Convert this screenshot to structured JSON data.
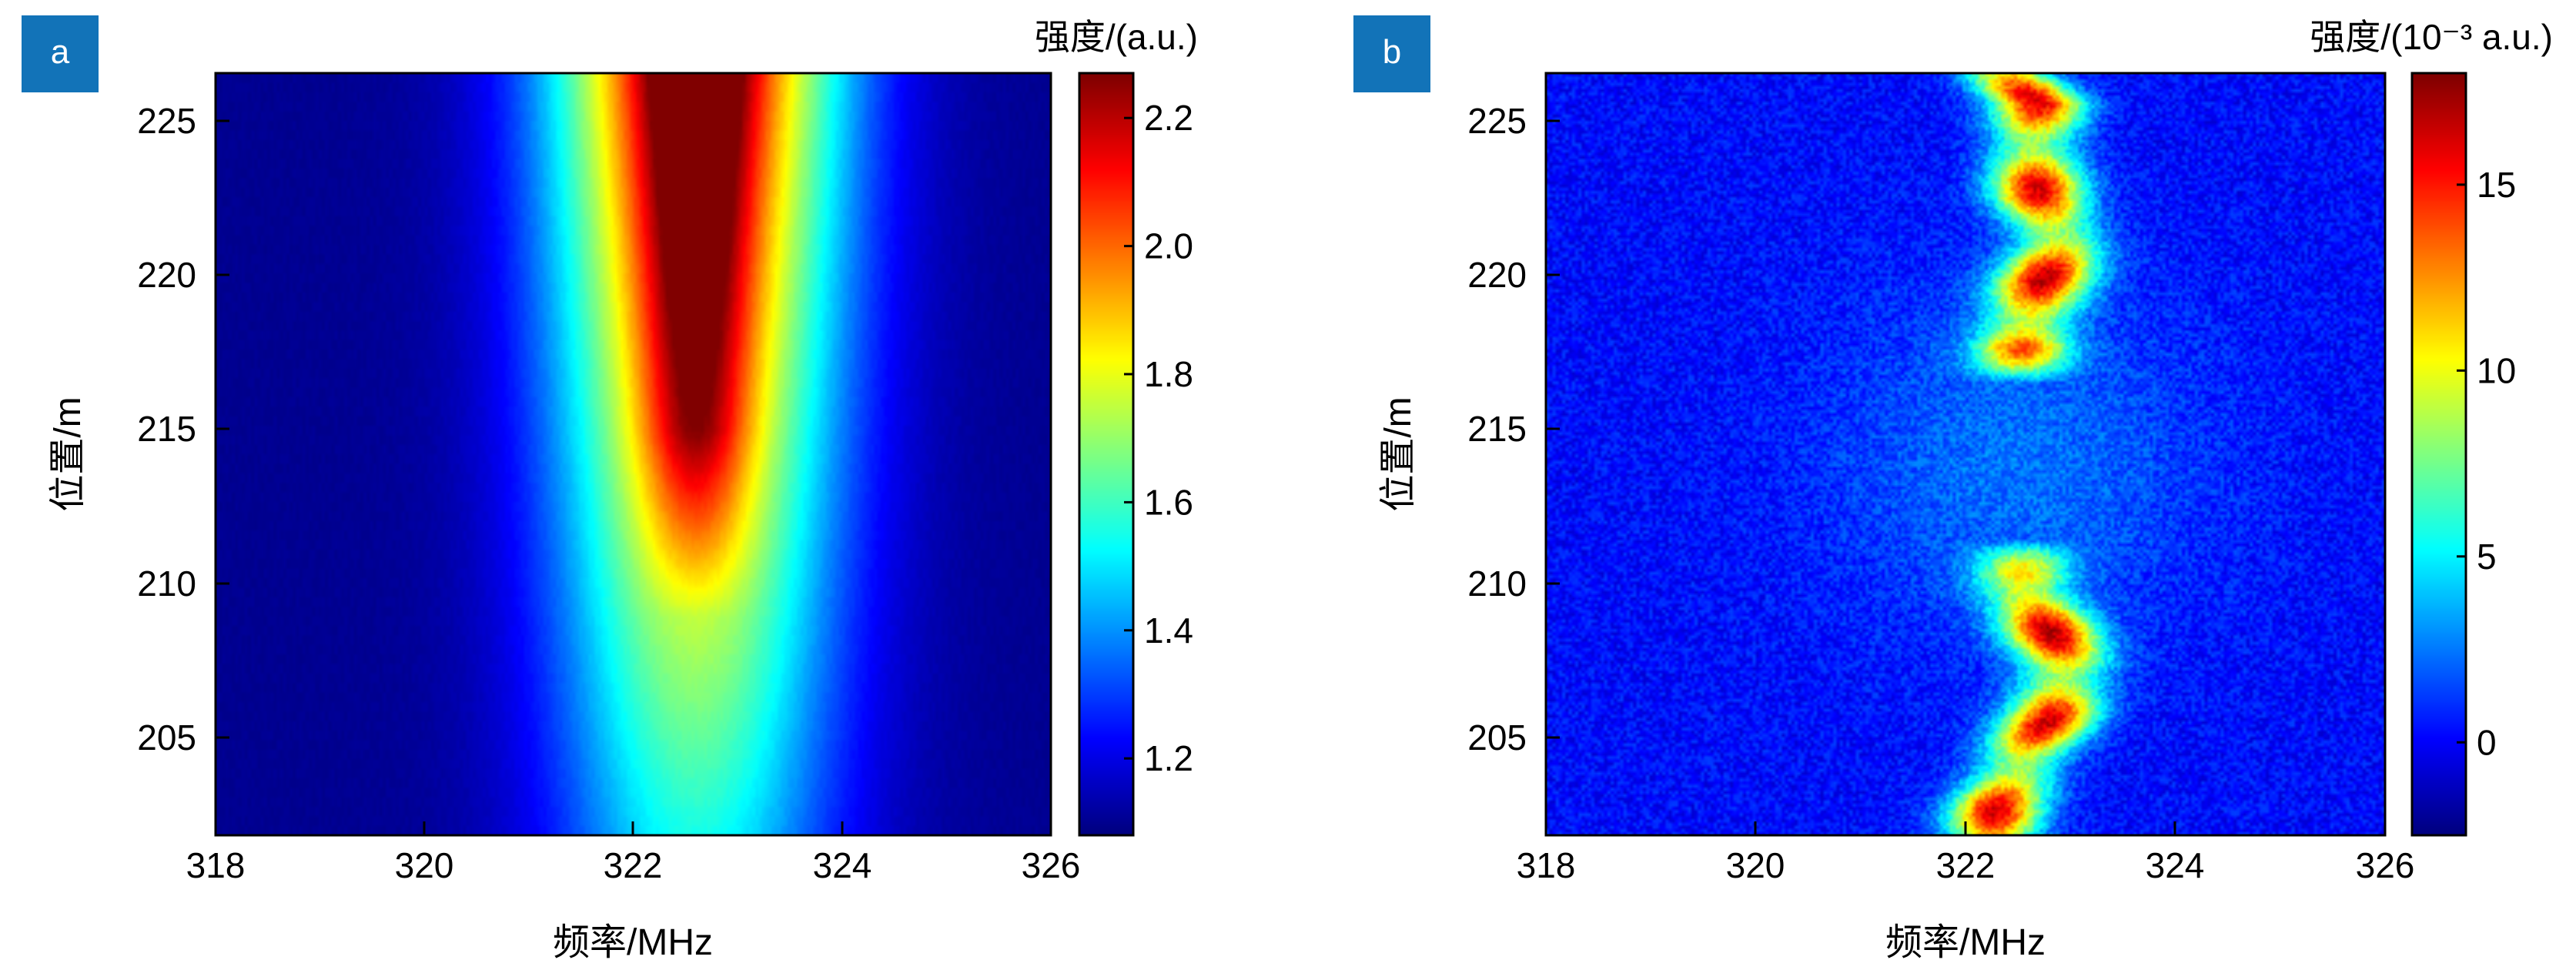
{
  "chart_data": [
    {
      "panel": "a",
      "type": "heatmap",
      "xlabel": "频率/MHz",
      "ylabel": "位置/m",
      "xlim": [
        318,
        326
      ],
      "ylim": [
        202,
        226.5
      ],
      "xticks": [
        318,
        320,
        322,
        324,
        326
      ],
      "xtick_labels": [
        "318",
        "320",
        "322",
        "324",
        "326"
      ],
      "yticks": [
        205,
        210,
        215,
        220,
        225
      ],
      "ytick_labels": [
        "205",
        "210",
        "215",
        "220",
        "225"
      ],
      "colormap": "jet",
      "colorbar": {
        "title": "强度/(a.u.)",
        "range": [
          1.08,
          2.27
        ],
        "ticks": [
          1.2,
          1.4,
          1.6,
          1.8,
          2.0,
          2.2
        ],
        "tick_labels": [
          "1.2",
          "1.4",
          "1.6",
          "1.8",
          "2.0",
          "2.2"
        ]
      },
      "field": {
        "background": 1.1,
        "peak_center_mhz": 322.6,
        "peak_width_mhz": 1.9,
        "peak_height_at_202m": 0.45,
        "peak_height_at_226m": 1.15,
        "narrow_core_width_mhz": 0.35,
        "narrow_core_height": 0.35,
        "narrow_core_start_m": 209
      }
    },
    {
      "panel": "b",
      "type": "heatmap",
      "xlabel": "频率/MHz",
      "ylabel": "位置/m",
      "xlim": [
        318,
        326
      ],
      "ylim": [
        202,
        226.5
      ],
      "xticks": [
        318,
        320,
        322,
        324,
        326
      ],
      "xtick_labels": [
        "318",
        "320",
        "322",
        "324",
        "326"
      ],
      "yticks": [
        205,
        210,
        215,
        220,
        225
      ],
      "ytick_labels": [
        "205",
        "210",
        "215",
        "220",
        "225"
      ],
      "colormap": "jet",
      "colorbar": {
        "title": "强度/(10⁻³ a.u.)",
        "range": [
          -2.5,
          18
        ],
        "ticks": [
          0,
          5,
          10,
          15
        ],
        "tick_labels": [
          "0",
          "5",
          "10",
          "15"
        ]
      },
      "ridge": {
        "points_position_m": [
          202,
          203,
          204.5,
          206,
          207.5,
          209,
          210,
          211,
          216,
          218,
          219.5,
          221,
          222.5,
          224,
          225.5,
          226.5
        ],
        "points_freq_mhz": [
          322.25,
          322.3,
          322.55,
          322.85,
          322.95,
          322.75,
          322.55,
          322.55,
          322.5,
          322.55,
          322.7,
          322.9,
          322.7,
          322.65,
          322.7,
          322.4
        ],
        "gap_from_m": 211.5,
        "gap_to_m": 216.5,
        "width_mhz": 0.3,
        "peak_value": 16,
        "baseline_value": 0.2,
        "diffuse_center_m": 214,
        "diffuse_value": 2.2
      }
    }
  ],
  "panels": [
    {
      "label": "a"
    },
    {
      "label": "b"
    }
  ],
  "colors": {
    "panel_badge": "#1273b8",
    "frame": "#000000"
  }
}
